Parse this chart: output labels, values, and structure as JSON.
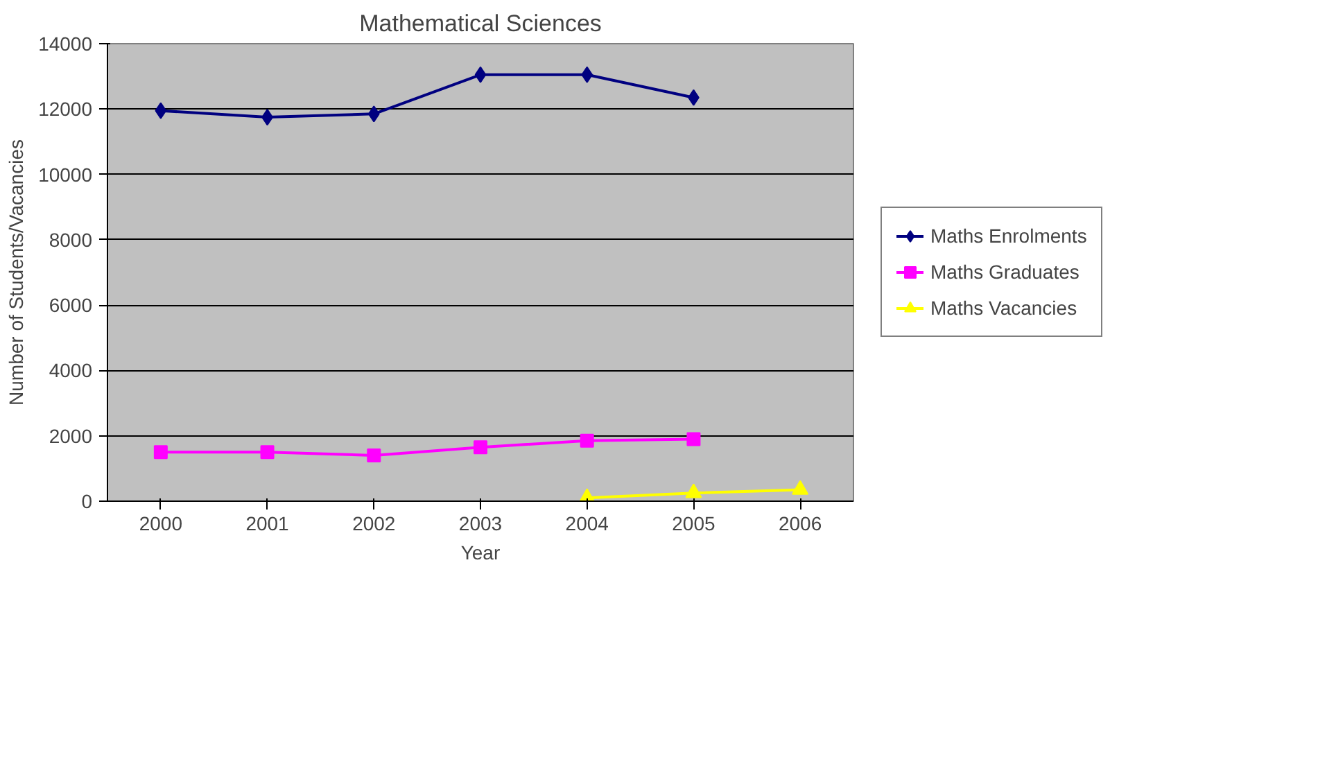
{
  "chart_data": {
    "type": "line",
    "title": "Mathematical Sciences",
    "xlabel": "Year",
    "ylabel": "Number of Students/Vacancies",
    "categories": [
      "2000",
      "2001",
      "2002",
      "2003",
      "2004",
      "2005",
      "2006"
    ],
    "series": [
      {
        "name": "Maths Enrolments",
        "color": "#000080",
        "marker": "diamond",
        "values": [
          11950,
          11750,
          11850,
          13050,
          13050,
          12350,
          null
        ]
      },
      {
        "name": "Maths Graduates",
        "color": "#ff00ff",
        "marker": "square",
        "values": [
          1500,
          1500,
          1400,
          1650,
          1850,
          1900,
          null
        ]
      },
      {
        "name": "Maths Vacancies",
        "color": "#ffff00",
        "marker": "triangle",
        "values": [
          null,
          null,
          null,
          null,
          100,
          250,
          350
        ]
      }
    ],
    "ylim": [
      0,
      14000
    ],
    "yticks": [
      0,
      2000,
      4000,
      6000,
      8000,
      10000,
      12000,
      14000
    ],
    "grid": "y",
    "legend": "right",
    "line_style": "solid"
  }
}
